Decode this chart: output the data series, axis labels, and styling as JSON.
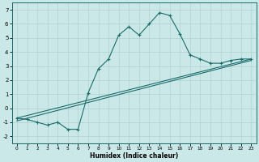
{
  "xlabel": "Humidex (Indice chaleur)",
  "xlim": [
    -0.5,
    23.5
  ],
  "ylim": [
    -2.5,
    7.5
  ],
  "yticks": [
    -2,
    -1,
    0,
    1,
    2,
    3,
    4,
    5,
    6,
    7
  ],
  "xticks": [
    0,
    1,
    2,
    3,
    4,
    5,
    6,
    7,
    8,
    9,
    10,
    11,
    12,
    13,
    14,
    15,
    16,
    17,
    18,
    19,
    20,
    21,
    22,
    23
  ],
  "bg_color": "#cbe8e8",
  "line_color": "#1a6b6b",
  "grid_color": "#b0d0d0",
  "curve1_x": [
    0,
    1,
    2,
    3,
    4,
    5,
    6,
    7,
    8,
    9,
    10,
    11,
    12,
    13,
    14,
    15,
    16,
    17,
    18,
    19,
    20,
    21,
    22,
    23
  ],
  "curve1_y": [
    -0.7,
    -0.8,
    -1.0,
    -1.2,
    -1.0,
    -1.5,
    -1.5,
    1.1,
    2.8,
    3.5,
    5.2,
    5.8,
    5.2,
    6.0,
    6.8,
    6.6,
    5.3,
    3.8,
    3.5,
    3.2,
    3.2,
    3.4,
    3.5,
    3.5
  ],
  "curve2_x": [
    0,
    23
  ],
  "curve2_y": [
    -0.9,
    3.4
  ],
  "curve3_x": [
    0,
    23
  ],
  "curve3_y": [
    -0.7,
    3.5
  ],
  "marker": "+"
}
